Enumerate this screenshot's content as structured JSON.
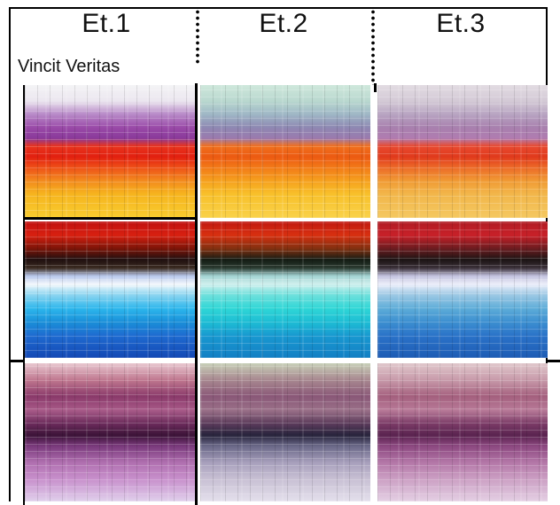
{
  "columns": [
    "Et.1",
    "Et.2",
    "Et.3"
  ],
  "subtitle": "Vincit Veritas",
  "grid": {
    "rows": 3,
    "cols": 3,
    "tiles": [
      [
        "warm sunset: purple over red-orange-yellow",
        "warm sunset, pale green sky",
        "warm sunset, pale mauve sky"
      ],
      [
        "red-black over white and blue",
        "red-black over cyan",
        "red-black over pale blue"
      ],
      [
        "pink-purple bands",
        "muted green-purple bands",
        "mauve-purple bands"
      ]
    ]
  }
}
